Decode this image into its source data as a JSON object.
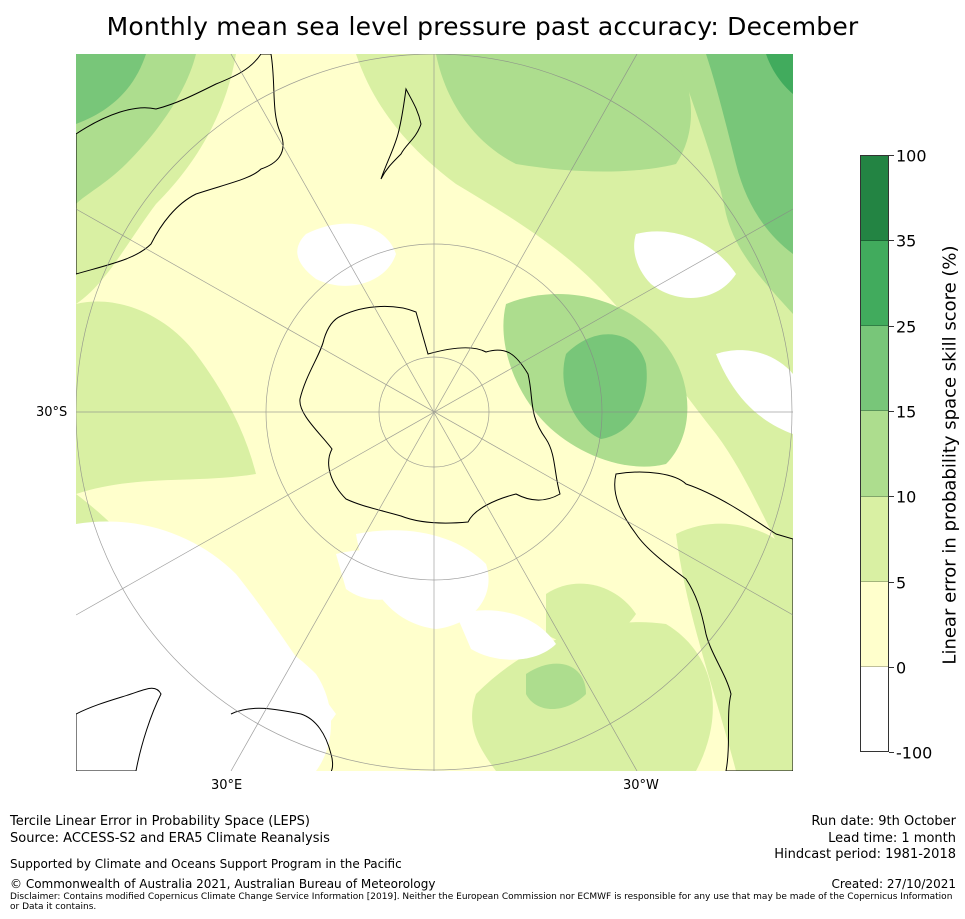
{
  "title": "Monthly mean sea level pressure past accuracy: December",
  "map": {
    "projection": "south-polar stereographic",
    "lat_label": "30°S",
    "lon_labels": {
      "east": "30°E",
      "west": "30°W"
    },
    "continents": [
      "Antarctica",
      "Australia",
      "New Zealand",
      "South America",
      "Africa"
    ]
  },
  "colorbar": {
    "label": "Linear error in probability space skill score (%)",
    "ticks": [
      "100",
      "35",
      "25",
      "15",
      "10",
      "5",
      "0",
      "-100"
    ],
    "colors": [
      "#238443",
      "#41ab5d",
      "#78c679",
      "#addd8e",
      "#d9f0a3",
      "#ffffcc",
      "#ffffff"
    ],
    "ranges": [
      [
        35,
        100
      ],
      [
        25,
        35
      ],
      [
        15,
        25
      ],
      [
        10,
        15
      ],
      [
        5,
        10
      ],
      [
        0,
        5
      ],
      [
        -100,
        0
      ]
    ]
  },
  "footer": {
    "line1": "Tercile Linear Error in Probability Space (LEPS)",
    "line2": "Source: ACCESS-S2 and ERA5 Climate Reanalysis",
    "support": "Supported by Climate and Oceans Support Program in the Pacific",
    "copyright": "© Commonwealth of Australia 2021, Australian Bureau of Meteorology",
    "disclaimer": "Disclaimer: Contains modified Copernicus Climate Change Service Information [2019]. Neither the European Commission nor ECMWF is responsible for any use that may be made of the Copernicus Information or Data it contains.",
    "run_date": "Run date: 9th October",
    "lead_time": "Lead time: 1 month",
    "hindcast": "Hindcast period: 1981-2018",
    "created": "Created: 27/10/2021"
  }
}
